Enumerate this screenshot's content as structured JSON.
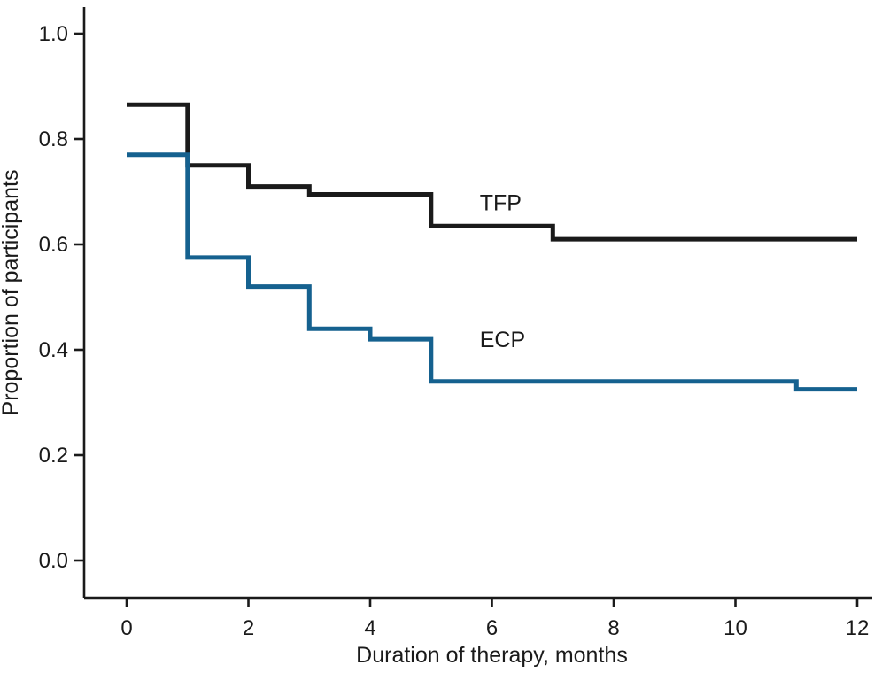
{
  "chart_data": {
    "type": "line",
    "subtype": "kaplan-meier-step",
    "title": "",
    "xlabel": "Duration of therapy, months",
    "ylabel": "Proportion of participants",
    "xlim": [
      0,
      12
    ],
    "ylim": [
      0.0,
      1.0
    ],
    "xticks": [
      "0",
      "2",
      "4",
      "6",
      "8",
      "10",
      "12"
    ],
    "yticks": [
      "0.0",
      "0.2",
      "0.4",
      "0.6",
      "0.8",
      "1.0"
    ],
    "grid": false,
    "legend_position": "inline-annotations",
    "axis_color": "#1a1a1a",
    "text_color": "#1a1a1a",
    "series": [
      {
        "name": "TFP",
        "color": "#1a1a1a",
        "line_width": 5,
        "label_position": {
          "x": 5.8,
          "y": 0.665
        },
        "points": [
          [
            0,
            0.865
          ],
          [
            1,
            0.865
          ],
          [
            1,
            0.75
          ],
          [
            2,
            0.75
          ],
          [
            2,
            0.71
          ],
          [
            3,
            0.71
          ],
          [
            3,
            0.695
          ],
          [
            5,
            0.695
          ],
          [
            5,
            0.635
          ],
          [
            7,
            0.635
          ],
          [
            7,
            0.61
          ],
          [
            12,
            0.61
          ]
        ]
      },
      {
        "name": "ECP",
        "color": "#15618f",
        "line_width": 5,
        "label_position": {
          "x": 5.8,
          "y": 0.405
        },
        "points": [
          [
            0,
            0.77
          ],
          [
            1,
            0.77
          ],
          [
            1,
            0.575
          ],
          [
            2,
            0.575
          ],
          [
            2,
            0.52
          ],
          [
            3,
            0.52
          ],
          [
            3,
            0.44
          ],
          [
            4,
            0.44
          ],
          [
            4,
            0.42
          ],
          [
            5,
            0.42
          ],
          [
            5,
            0.34
          ],
          [
            11,
            0.34
          ],
          [
            11,
            0.325
          ],
          [
            12,
            0.325
          ]
        ]
      }
    ]
  }
}
